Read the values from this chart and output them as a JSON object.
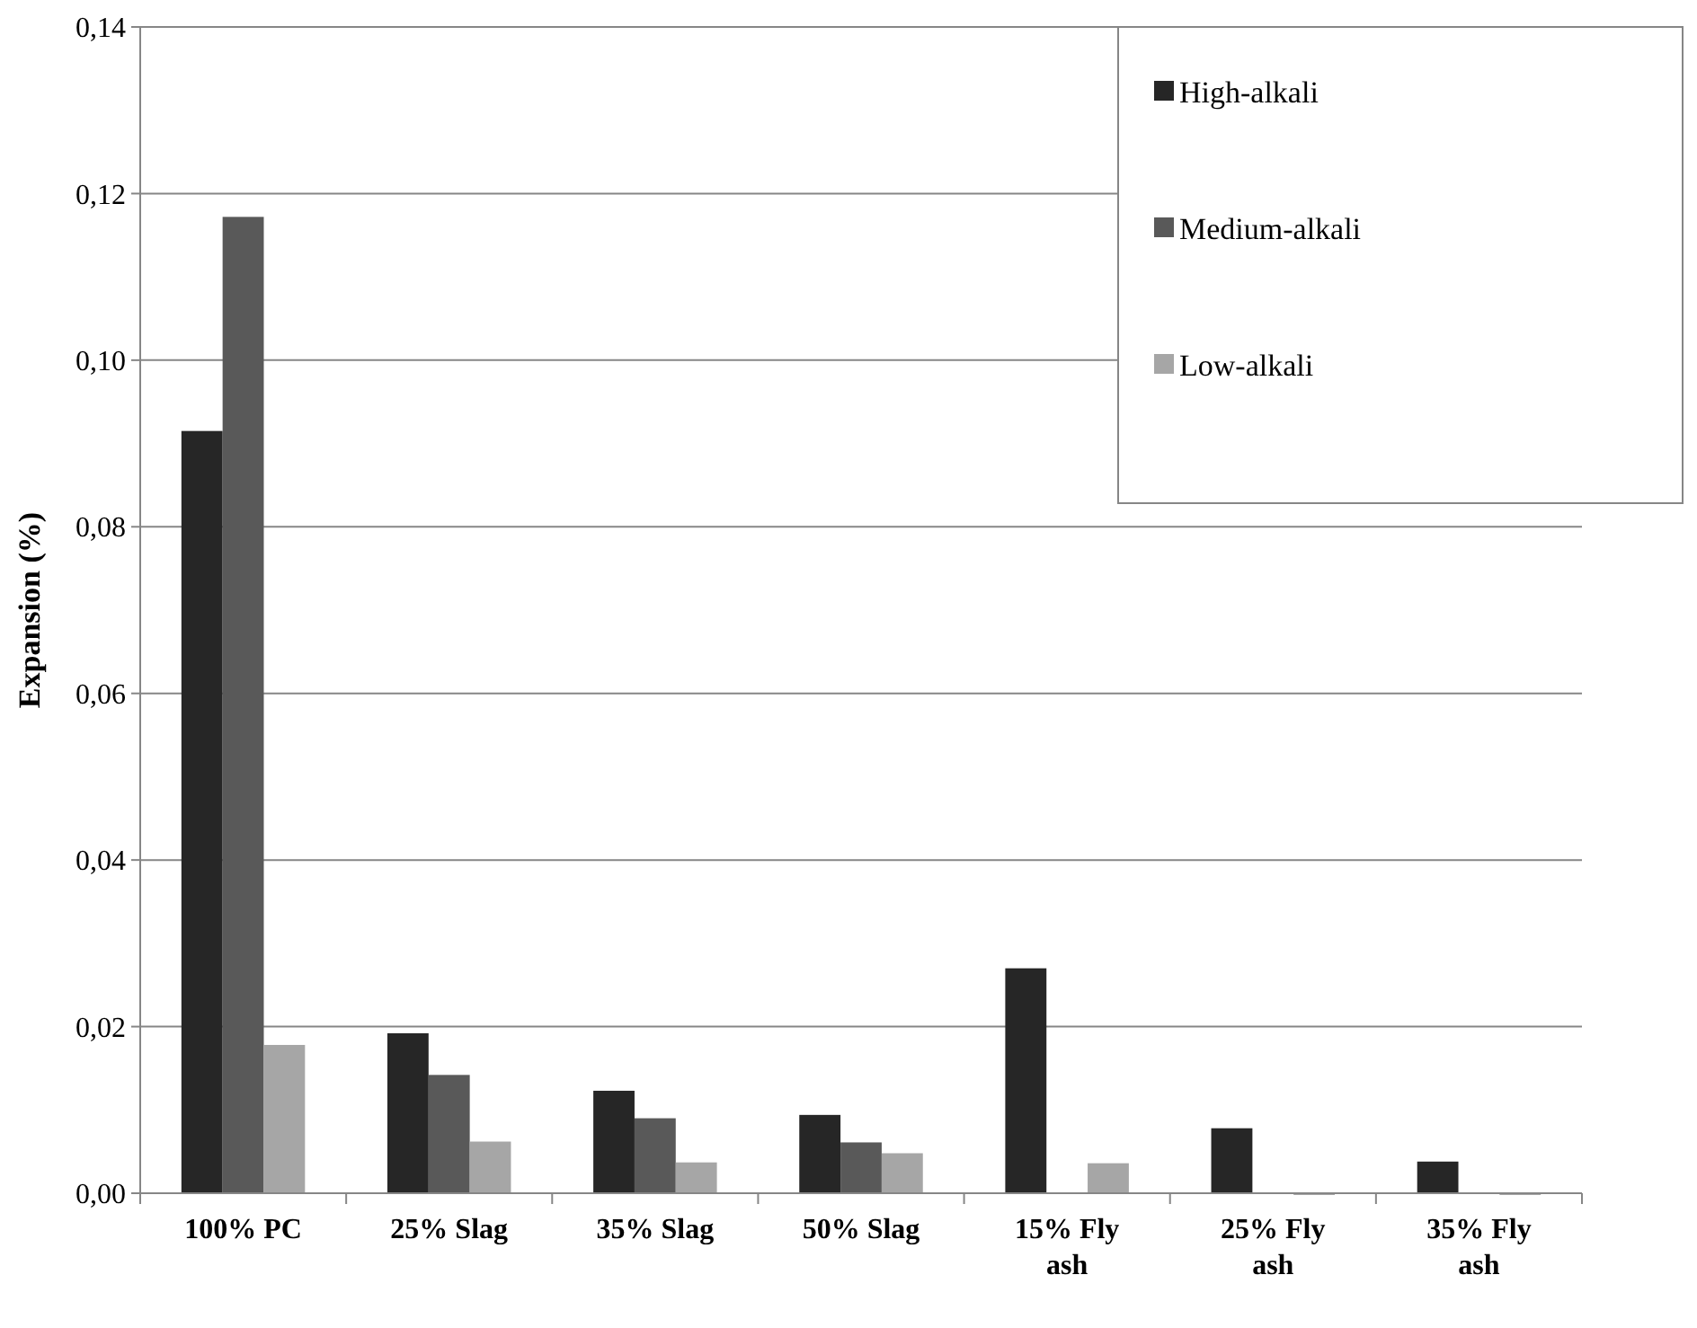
{
  "chart_data": {
    "type": "bar",
    "ylabel": "Expansion (%)",
    "categories": [
      "100% PC",
      "25% Slag",
      "35% Slag",
      "50% Slag",
      "15% Fly ash",
      "25% Fly ash",
      "35% Fly ash"
    ],
    "series": [
      {
        "name": "High-alkali",
        "color": "#262626",
        "values": [
          0.0915,
          0.0192,
          0.0123,
          0.0094,
          0.027,
          0.0078,
          0.0038
        ]
      },
      {
        "name": "Medium-alkali",
        "color": "#595959",
        "values": [
          0.1172,
          0.0142,
          0.009,
          0.0061,
          null,
          null,
          null
        ]
      },
      {
        "name": "Low-alkali",
        "color": "#a6a6a6",
        "values": [
          0.0178,
          0.0062,
          0.0037,
          0.0048,
          0.0036,
          0,
          0
        ]
      }
    ],
    "ylim": [
      0,
      0.14
    ],
    "yticks": [
      {
        "value": 0,
        "label": "0,00"
      },
      {
        "value": 0.02,
        "label": "0,02"
      },
      {
        "value": 0.04,
        "label": "0,04"
      },
      {
        "value": 0.06,
        "label": "0,06"
      },
      {
        "value": 0.08,
        "label": "0,08"
      },
      {
        "value": 0.1,
        "label": "0,10"
      },
      {
        "value": 0.12,
        "label": "0,12"
      },
      {
        "value": 0.14,
        "label": "0,14"
      }
    ],
    "grid": "y",
    "legend": "top right"
  }
}
